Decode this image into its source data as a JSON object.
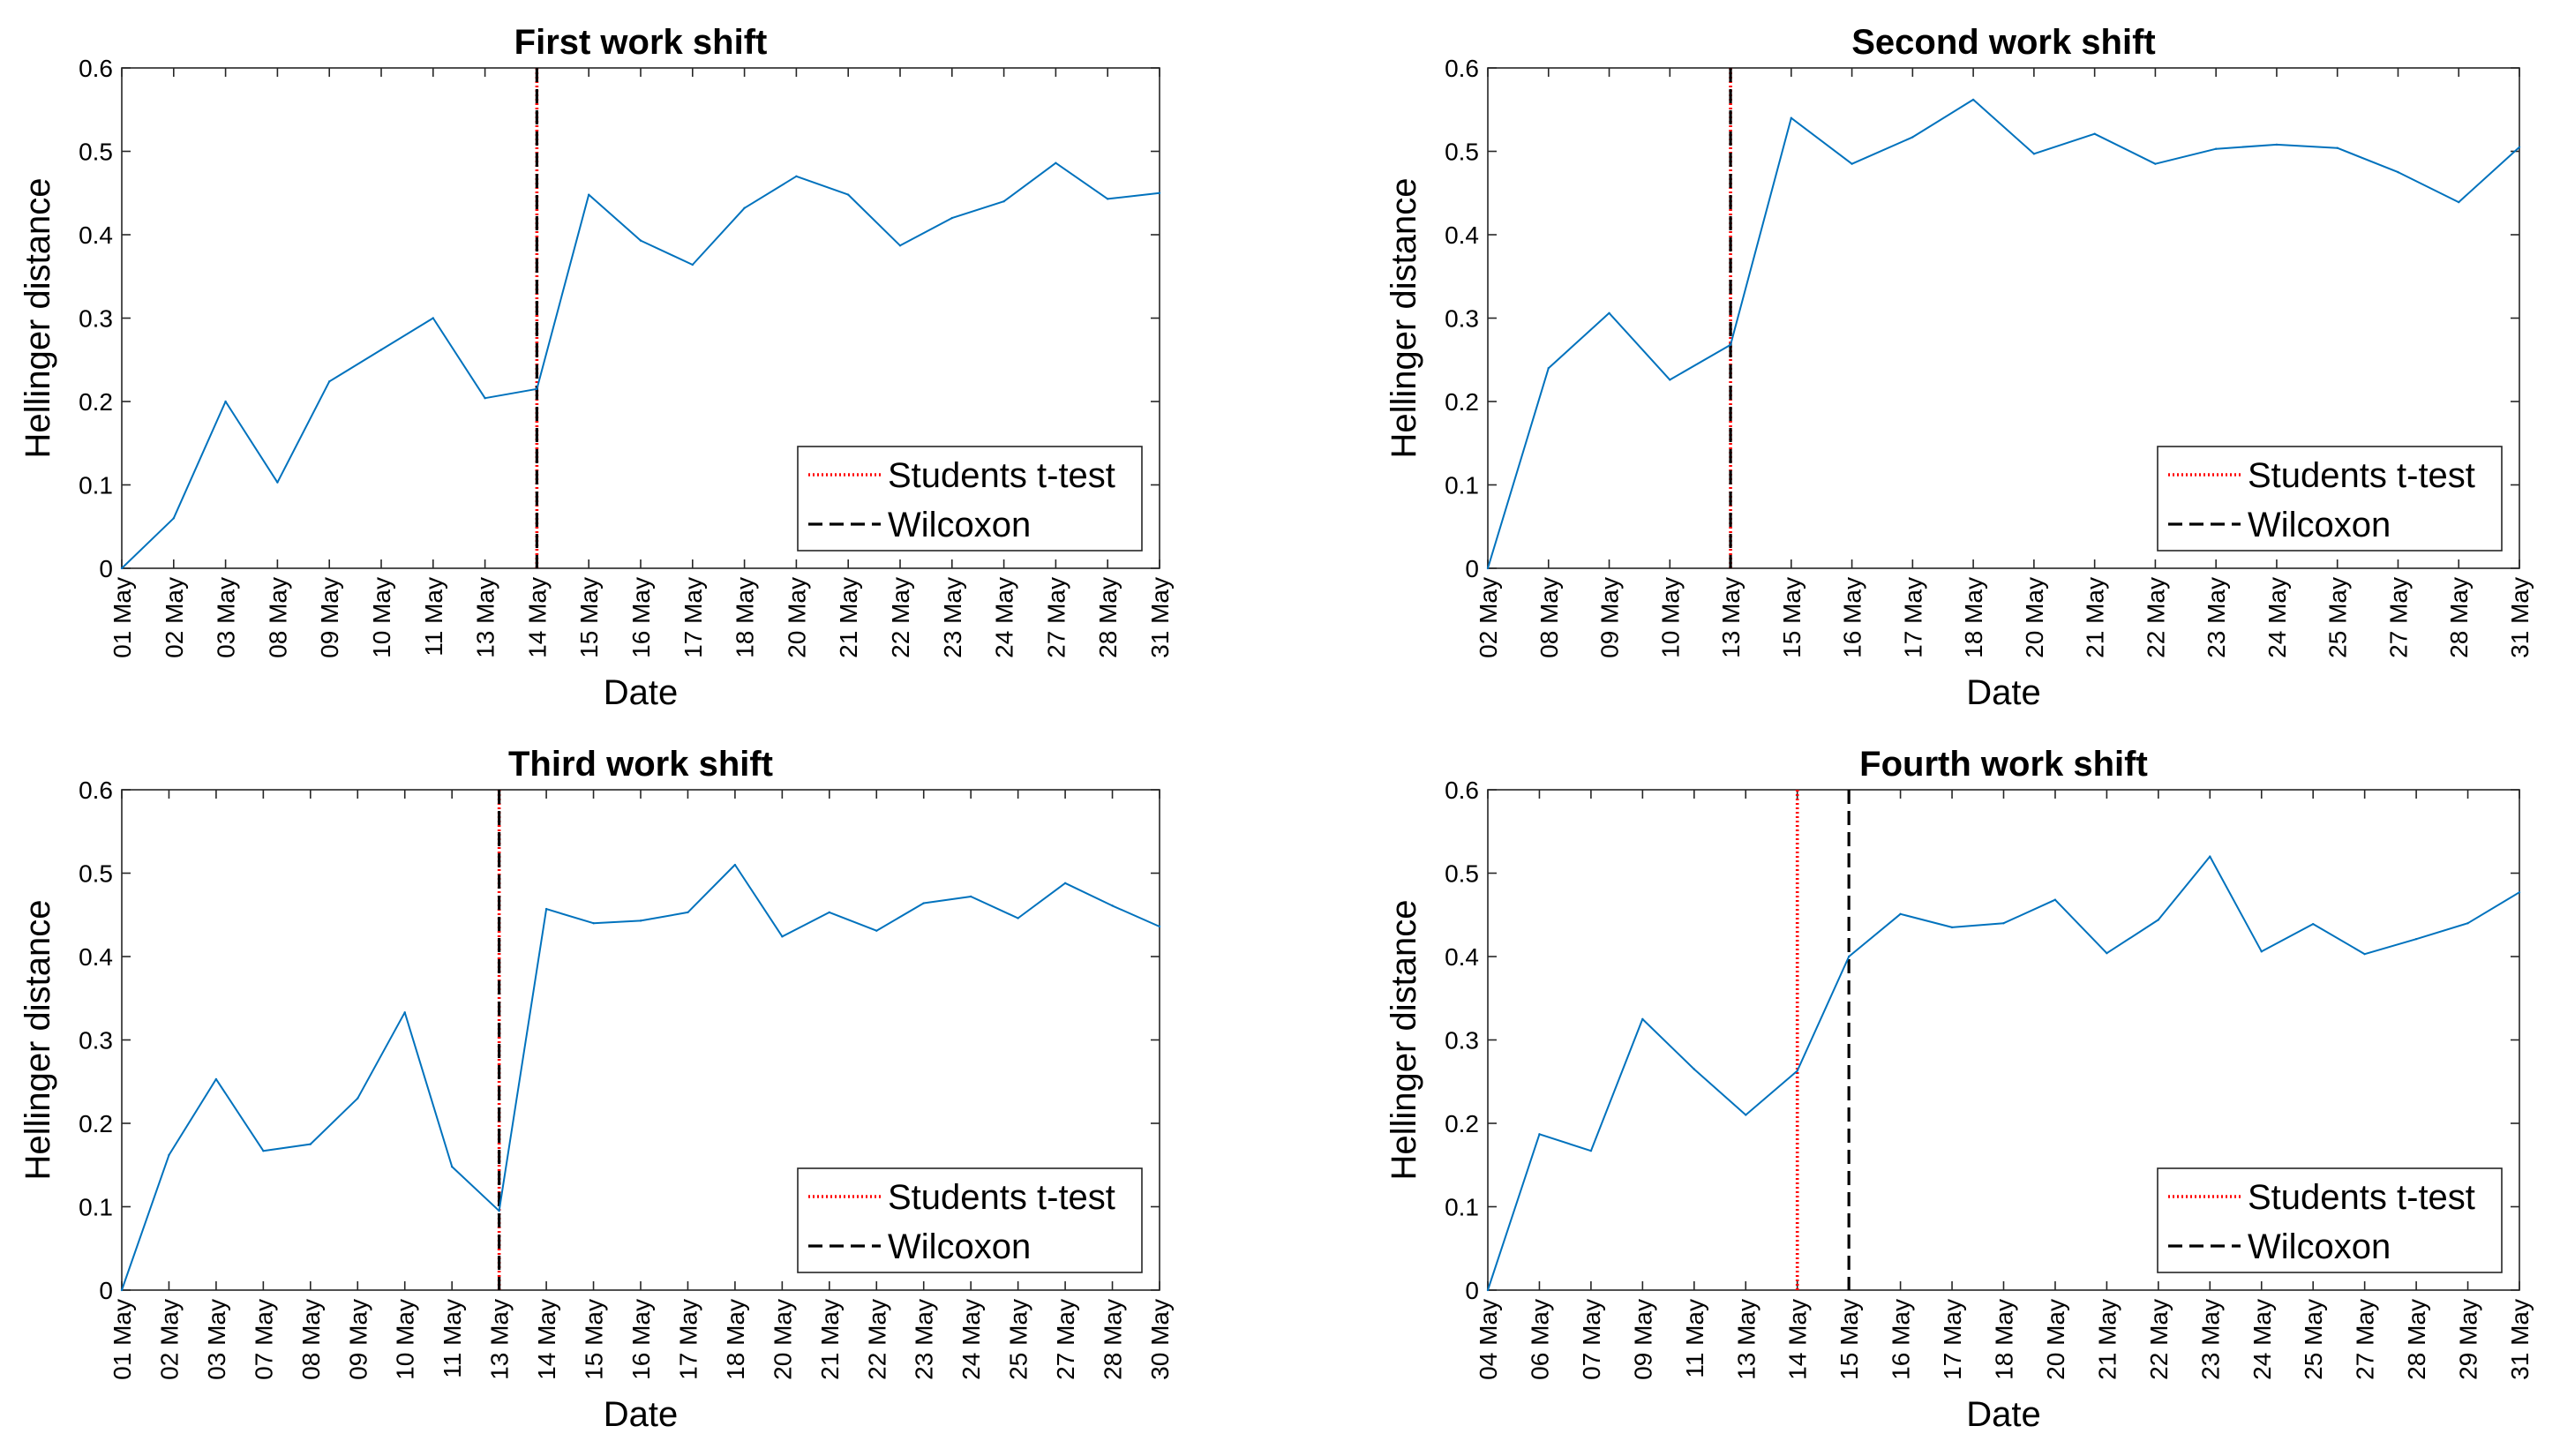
{
  "chart_data": [
    {
      "type": "line",
      "title": "First work shift",
      "xlabel": "Date",
      "ylabel": "Hellinger distance",
      "ylim": [
        0,
        0.6
      ],
      "yticks": [
        "0",
        "0.1",
        "0.2",
        "0.3",
        "0.4",
        "0.5",
        "0.6"
      ],
      "categories": [
        "01 May",
        "02 May",
        "03 May",
        "08 May",
        "09 May",
        "10 May",
        "11 May",
        "13 May",
        "14 May",
        "15 May",
        "16 May",
        "17 May",
        "18 May",
        "20 May",
        "21 May",
        "22 May",
        "23 May",
        "24 May",
        "27 May",
        "28 May",
        "31 May"
      ],
      "series": [
        {
          "name": "Hellinger distance",
          "color": "#0072bd",
          "values": [
            0.0,
            0.06,
            0.2,
            0.103,
            0.224,
            0.262,
            0.3,
            0.204,
            0.215,
            0.448,
            0.393,
            0.364,
            0.432,
            0.47,
            0.448,
            0.387,
            0.42,
            0.44,
            0.486,
            0.443,
            0.45
          ]
        }
      ],
      "vlines": [
        {
          "name": "Students t-test",
          "category": "14 May",
          "color": "#ff0000",
          "style": "dotted"
        },
        {
          "name": "Wilcoxon",
          "category": "14 May",
          "color": "#000000",
          "style": "dashed"
        }
      ],
      "legend": {
        "position": "bottom-right",
        "entries": [
          "Students t-test",
          "Wilcoxon"
        ]
      }
    },
    {
      "type": "line",
      "title": "Second work shift",
      "xlabel": "Date",
      "ylabel": "Hellinger distance",
      "ylim": [
        0,
        0.6
      ],
      "yticks": [
        "0",
        "0.1",
        "0.2",
        "0.3",
        "0.4",
        "0.5",
        "0.6"
      ],
      "categories": [
        "02 May",
        "08 May",
        "09 May",
        "10 May",
        "13 May",
        "15 May",
        "16 May",
        "17 May",
        "18 May",
        "20 May",
        "21 May",
        "22 May",
        "23 May",
        "24 May",
        "25 May",
        "27 May",
        "28 May",
        "31 May"
      ],
      "series": [
        {
          "name": "Hellinger distance",
          "color": "#0072bd",
          "values": [
            0.0,
            0.24,
            0.306,
            0.226,
            0.268,
            0.54,
            0.485,
            0.517,
            0.562,
            0.497,
            0.521,
            0.485,
            0.503,
            0.508,
            0.504,
            0.475,
            0.439,
            0.505
          ]
        }
      ],
      "vlines": [
        {
          "name": "Students t-test",
          "category": "13 May",
          "color": "#ff0000",
          "style": "dotted"
        },
        {
          "name": "Wilcoxon",
          "category": "13 May",
          "color": "#000000",
          "style": "dashed"
        }
      ],
      "legend": {
        "position": "bottom-right",
        "entries": [
          "Students t-test",
          "Wilcoxon"
        ]
      }
    },
    {
      "type": "line",
      "title": "Third work shift",
      "xlabel": "Date",
      "ylabel": "Hellinger distance",
      "ylim": [
        0,
        0.6
      ],
      "yticks": [
        "0",
        "0.1",
        "0.2",
        "0.3",
        "0.4",
        "0.5",
        "0.6"
      ],
      "categories": [
        "01 May",
        "02 May",
        "03 May",
        "07 May",
        "08 May",
        "09 May",
        "10 May",
        "11 May",
        "13 May",
        "14 May",
        "15 May",
        "16 May",
        "17 May",
        "18 May",
        "20 May",
        "21 May",
        "22 May",
        "23 May",
        "24 May",
        "25 May",
        "27 May",
        "28 May",
        "30 May"
      ],
      "series": [
        {
          "name": "Hellinger distance",
          "color": "#0072bd",
          "values": [
            0.0,
            0.162,
            0.253,
            0.167,
            0.175,
            0.23,
            0.333,
            0.148,
            0.095,
            0.457,
            0.44,
            0.443,
            0.453,
            0.51,
            0.424,
            0.453,
            0.431,
            0.464,
            0.472,
            0.446,
            0.488,
            0.461,
            0.436
          ]
        }
      ],
      "vlines": [
        {
          "name": "Students t-test",
          "category": "13 May",
          "color": "#ff0000",
          "style": "dotted"
        },
        {
          "name": "Wilcoxon",
          "category": "13 May",
          "color": "#000000",
          "style": "dashed"
        }
      ],
      "legend": {
        "position": "bottom-right",
        "entries": [
          "Students t-test",
          "Wilcoxon"
        ]
      }
    },
    {
      "type": "line",
      "title": "Fourth work shift",
      "xlabel": "Date",
      "ylabel": "Hellinger distance",
      "ylim": [
        0,
        0.6
      ],
      "yticks": [
        "0",
        "0.1",
        "0.2",
        "0.3",
        "0.4",
        "0.5",
        "0.6"
      ],
      "categories": [
        "04 May",
        "06 May",
        "07 May",
        "09 May",
        "11 May",
        "13 May",
        "14 May",
        "15 May",
        "16 May",
        "17 May",
        "18 May",
        "20 May",
        "21 May",
        "22 May",
        "23 May",
        "24 May",
        "25 May",
        "27 May",
        "28 May",
        "29 May",
        "31 May"
      ],
      "series": [
        {
          "name": "Hellinger distance",
          "color": "#0072bd",
          "values": [
            0.0,
            0.187,
            0.167,
            0.325,
            0.265,
            0.21,
            0.263,
            0.4,
            0.451,
            0.435,
            0.44,
            0.468,
            0.404,
            0.444,
            0.52,
            0.406,
            0.439,
            0.403,
            0.421,
            0.44,
            0.477
          ]
        }
      ],
      "vlines": [
        {
          "name": "Students t-test",
          "category": "14 May",
          "color": "#ff0000",
          "style": "dotted"
        },
        {
          "name": "Wilcoxon",
          "category": "15 May",
          "color": "#000000",
          "style": "dashed"
        }
      ],
      "legend": {
        "position": "bottom-right",
        "entries": [
          "Students t-test",
          "Wilcoxon"
        ]
      }
    }
  ]
}
